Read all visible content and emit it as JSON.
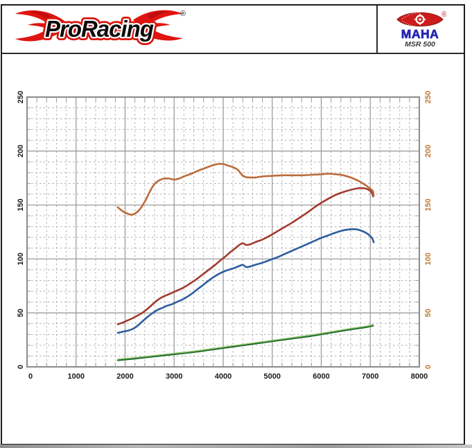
{
  "header": {
    "brand_logo_text": "ProRacing",
    "brand_registered": "®",
    "maha_logo_text": "MAHA",
    "maha_registered": "®",
    "device_model": "MSR 500"
  },
  "chart_data": {
    "type": "line",
    "title": "",
    "xlabel": "",
    "ylabel": "",
    "x_range": [
      0,
      8000
    ],
    "y_range": [
      0,
      250
    ],
    "x_major_step": 1000,
    "x_minor_step": 200,
    "y_major_step": 50,
    "y_minor_step": 10,
    "grid": {
      "major_color": "#9c9c9c",
      "minor_color": "#adadad",
      "border_color": "#8a8a8a"
    },
    "axis_colors": {
      "left": "#1a1a1a",
      "right": "#c1772f",
      "bottom": "#1a1a1a"
    },
    "x_ticks": [
      "0",
      "1000",
      "2000",
      "3000",
      "4000",
      "5000",
      "6000",
      "7000",
      "8000"
    ],
    "y_ticks_left": [
      "0",
      "50",
      "100",
      "150",
      "200",
      "250"
    ],
    "y_ticks_right": [
      "0",
      "50",
      "100",
      "150",
      "200",
      "250"
    ],
    "legend": [],
    "series": [
      {
        "name": "loss-light-green",
        "color": "#8abc63",
        "width": 1.6,
        "points": [
          [
            1850,
            7
          ],
          [
            2200,
            8.5
          ],
          [
            2600,
            10.5
          ],
          [
            3000,
            12.5
          ],
          [
            3400,
            14.5
          ],
          [
            3800,
            17
          ],
          [
            4200,
            19.5
          ],
          [
            4600,
            22
          ],
          [
            5000,
            24.5
          ],
          [
            5400,
            27
          ],
          [
            5800,
            29.5
          ],
          [
            6200,
            32.5
          ],
          [
            6600,
            35.5
          ],
          [
            6900,
            37.5
          ],
          [
            7060,
            39
          ]
        ]
      },
      {
        "name": "loss-dark-green",
        "color": "#1d6b2a",
        "width": 1.8,
        "points": [
          [
            1850,
            6
          ],
          [
            2200,
            7.5
          ],
          [
            2600,
            9.5
          ],
          [
            3000,
            11.5
          ],
          [
            3400,
            13.5
          ],
          [
            3800,
            16
          ],
          [
            4200,
            18.5
          ],
          [
            4600,
            21
          ],
          [
            5000,
            23.5
          ],
          [
            5400,
            26
          ],
          [
            5800,
            28.5
          ],
          [
            6200,
            31.5
          ],
          [
            6600,
            34.5
          ],
          [
            6900,
            36.5
          ],
          [
            7060,
            38
          ]
        ]
      },
      {
        "name": "blue-curve",
        "color": "#2d5d9e",
        "width": 2.6,
        "points": [
          [
            1850,
            31.5
          ],
          [
            1950,
            32.5
          ],
          [
            2050,
            33.5
          ],
          [
            2150,
            35
          ],
          [
            2250,
            38
          ],
          [
            2350,
            42
          ],
          [
            2450,
            46
          ],
          [
            2550,
            49.5
          ],
          [
            2650,
            52.5
          ],
          [
            2750,
            54.5
          ],
          [
            2850,
            56.5
          ],
          [
            2950,
            58
          ],
          [
            3050,
            60
          ],
          [
            3150,
            62
          ],
          [
            3250,
            64.5
          ],
          [
            3350,
            67.5
          ],
          [
            3450,
            71
          ],
          [
            3550,
            74.5
          ],
          [
            3650,
            78
          ],
          [
            3750,
            81.5
          ],
          [
            3850,
            84.5
          ],
          [
            3950,
            87
          ],
          [
            4050,
            89
          ],
          [
            4150,
            90.5
          ],
          [
            4250,
            92
          ],
          [
            4330,
            93.5
          ],
          [
            4400,
            94.5
          ],
          [
            4470,
            92.5
          ],
          [
            4550,
            93
          ],
          [
            4650,
            94.5
          ],
          [
            4800,
            96.5
          ],
          [
            4950,
            99
          ],
          [
            5100,
            101.5
          ],
          [
            5250,
            104.5
          ],
          [
            5400,
            107.5
          ],
          [
            5550,
            110.5
          ],
          [
            5700,
            113.5
          ],
          [
            5850,
            116.5
          ],
          [
            6000,
            119.5
          ],
          [
            6150,
            122
          ],
          [
            6300,
            124.5
          ],
          [
            6450,
            126.5
          ],
          [
            6600,
            127.5
          ],
          [
            6700,
            127.5
          ],
          [
            6800,
            126.5
          ],
          [
            6900,
            124.5
          ],
          [
            6980,
            122
          ],
          [
            7040,
            119
          ],
          [
            7070,
            115.5
          ]
        ]
      },
      {
        "name": "dark-red-curve",
        "color": "#a23a2d",
        "width": 2.6,
        "points": [
          [
            1850,
            39.5
          ],
          [
            1950,
            41
          ],
          [
            2050,
            43
          ],
          [
            2150,
            45
          ],
          [
            2250,
            47.5
          ],
          [
            2350,
            50
          ],
          [
            2450,
            53.5
          ],
          [
            2550,
            57.5
          ],
          [
            2650,
            61.5
          ],
          [
            2750,
            64.5
          ],
          [
            2850,
            66.5
          ],
          [
            2950,
            68.5
          ],
          [
            3050,
            70.5
          ],
          [
            3150,
            72.5
          ],
          [
            3250,
            75
          ],
          [
            3350,
            78
          ],
          [
            3450,
            81
          ],
          [
            3550,
            84.5
          ],
          [
            3650,
            88
          ],
          [
            3750,
            91.5
          ],
          [
            3850,
            95
          ],
          [
            3950,
            99
          ],
          [
            4050,
            102.5
          ],
          [
            4150,
            106.5
          ],
          [
            4250,
            110
          ],
          [
            4330,
            113
          ],
          [
            4400,
            114.5
          ],
          [
            4470,
            113
          ],
          [
            4550,
            113.5
          ],
          [
            4650,
            115.5
          ],
          [
            4800,
            118
          ],
          [
            4950,
            121.5
          ],
          [
            5100,
            125.5
          ],
          [
            5250,
            129.5
          ],
          [
            5400,
            133.5
          ],
          [
            5550,
            138
          ],
          [
            5700,
            142.5
          ],
          [
            5850,
            147.5
          ],
          [
            6000,
            152
          ],
          [
            6150,
            156
          ],
          [
            6300,
            159.5
          ],
          [
            6450,
            162
          ],
          [
            6600,
            164
          ],
          [
            6750,
            165.5
          ],
          [
            6870,
            165.5
          ],
          [
            6950,
            164.5
          ],
          [
            7020,
            162
          ],
          [
            7060,
            158
          ]
        ]
      },
      {
        "name": "orange-curve",
        "color": "#bc6a3a",
        "width": 2.6,
        "points": [
          [
            1850,
            148
          ],
          [
            1900,
            146
          ],
          [
            1975,
            143.5
          ],
          [
            2050,
            142
          ],
          [
            2125,
            141
          ],
          [
            2200,
            142
          ],
          [
            2300,
            146
          ],
          [
            2400,
            153
          ],
          [
            2500,
            162
          ],
          [
            2575,
            168
          ],
          [
            2650,
            171.5
          ],
          [
            2725,
            173.5
          ],
          [
            2800,
            174.5
          ],
          [
            2900,
            174.5
          ],
          [
            3000,
            173.5
          ],
          [
            3100,
            174.5
          ],
          [
            3200,
            176.5
          ],
          [
            3350,
            179
          ],
          [
            3500,
            182
          ],
          [
            3650,
            184.5
          ],
          [
            3800,
            187
          ],
          [
            3900,
            188
          ],
          [
            4000,
            188
          ],
          [
            4100,
            186.5
          ],
          [
            4200,
            185
          ],
          [
            4300,
            182.5
          ],
          [
            4380,
            178
          ],
          [
            4450,
            176
          ],
          [
            4550,
            175.5
          ],
          [
            4650,
            175.5
          ],
          [
            4800,
            176.5
          ],
          [
            5000,
            177
          ],
          [
            5200,
            177.5
          ],
          [
            5400,
            177.5
          ],
          [
            5600,
            177.5
          ],
          [
            5800,
            178
          ],
          [
            6000,
            178.5
          ],
          [
            6150,
            179
          ],
          [
            6300,
            178.5
          ],
          [
            6450,
            177.5
          ],
          [
            6600,
            175.5
          ],
          [
            6750,
            172.5
          ],
          [
            6900,
            168.5
          ],
          [
            7000,
            165
          ],
          [
            7050,
            163
          ],
          [
            7070,
            159
          ]
        ]
      }
    ]
  }
}
